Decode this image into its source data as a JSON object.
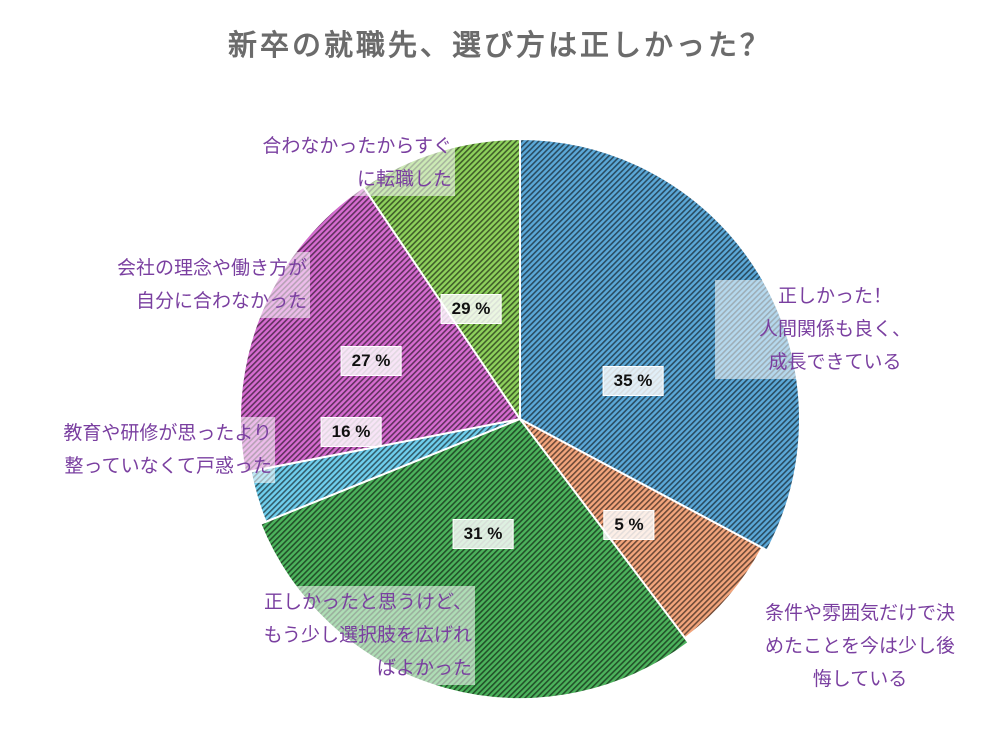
{
  "chart_data": {
    "type": "pie",
    "title": "新卒の就職先、選び方は正しかった？",
    "slices": [
      {
        "label_lines": [
          "正しかった！",
          "人間関係も良く、",
          "成長できている"
        ],
        "value": 35,
        "value_text": "35 %",
        "color": "#5ba8d8"
      },
      {
        "label_lines": [
          "条件や雰囲気だけで決",
          "めたことを今は少し後",
          "悔している"
        ],
        "value": 5,
        "value_text": "5 %",
        "color": "#f3a57c"
      },
      {
        "label_lines": [
          "正しかったと思うけど、",
          "もう少し選択肢を広げれ",
          "ばよかった"
        ],
        "value": 31,
        "value_text": "31 %",
        "color": "#4cb35c"
      },
      {
        "label_lines": [
          "教育や研修が思ったより",
          "整っていなくて戸惑った"
        ],
        "value": 16,
        "value_text": "16 %",
        "color": "#6fcfee"
      },
      {
        "label_lines": [
          "会社の理念や働き方が",
          "自分に合わなかった"
        ],
        "value": 27,
        "value_text": "27 %",
        "color": "#d66cd1"
      },
      {
        "label_lines": [
          "合わなかったからすぐ",
          "に転職した"
        ],
        "value": 29,
        "value_text": "29 %",
        "color": "#8ed15c"
      }
    ],
    "legend": "none",
    "pattern": "diagonal-hatch"
  }
}
